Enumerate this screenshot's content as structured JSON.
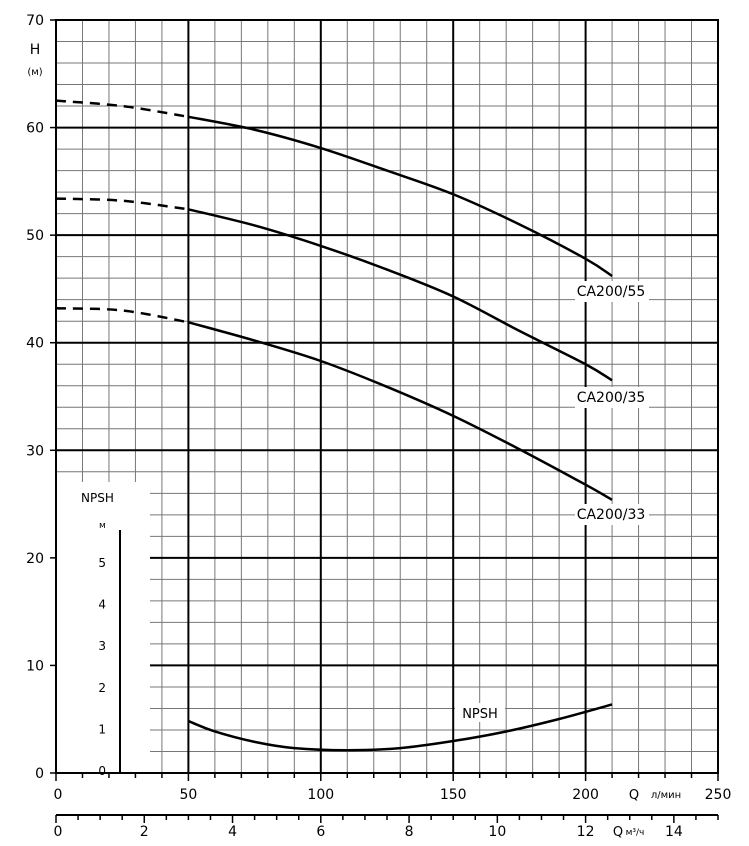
{
  "chart_data": {
    "type": "line",
    "title": "",
    "ylabel": "H",
    "yunit": "(м)",
    "xlabel": "Q",
    "xunit": "л/мин",
    "x2label": "Q",
    "x2unit": "м³/ч",
    "xlim": [
      0,
      250
    ],
    "ylim": [
      0,
      70
    ],
    "x2lim": [
      0,
      15
    ],
    "xticks": [
      "0",
      "50",
      "100",
      "150",
      "200",
      "250"
    ],
    "yticks": [
      "0",
      "10",
      "20",
      "30",
      "40",
      "50",
      "60",
      "70"
    ],
    "x2ticks": [
      "0",
      "2",
      "4",
      "6",
      "8",
      "10",
      "12",
      "14"
    ],
    "grid": true,
    "series": [
      {
        "name": "CA200/55",
        "dashed_to": 50,
        "points": [
          [
            0,
            62.5
          ],
          [
            25,
            62
          ],
          [
            50,
            61
          ],
          [
            75,
            59.8
          ],
          [
            100,
            58.1
          ],
          [
            125,
            56
          ],
          [
            150,
            53.8
          ],
          [
            175,
            51
          ],
          [
            200,
            47.8
          ],
          [
            210,
            46.2
          ]
        ]
      },
      {
        "name": "CA200/35",
        "dashed_to": 50,
        "points": [
          [
            0,
            53.4
          ],
          [
            25,
            53.2
          ],
          [
            50,
            52.4
          ],
          [
            75,
            50.9
          ],
          [
            100,
            49
          ],
          [
            125,
            46.8
          ],
          [
            150,
            44.3
          ],
          [
            175,
            41.1
          ],
          [
            200,
            38
          ],
          [
            210,
            36.5
          ]
        ]
      },
      {
        "name": "CA200/33",
        "dashed_to": 50,
        "points": [
          [
            0,
            43.2
          ],
          [
            25,
            43
          ],
          [
            50,
            41.9
          ],
          [
            75,
            40.2
          ],
          [
            100,
            38.3
          ],
          [
            125,
            35.9
          ],
          [
            150,
            33.2
          ],
          [
            175,
            30.1
          ],
          [
            200,
            26.8
          ],
          [
            210,
            25.4
          ]
        ]
      }
    ],
    "npsh": {
      "label": "NPSH",
      "axis_label": "NPSH",
      "unit": "м",
      "ticks": [
        "0",
        "1",
        "2",
        "3",
        "4",
        "5"
      ],
      "range": [
        0,
        5.6
      ],
      "points": [
        [
          50,
          1.2
        ],
        [
          60,
          0.95
        ],
        [
          75,
          0.7
        ],
        [
          90,
          0.55
        ],
        [
          110,
          0.5
        ],
        [
          130,
          0.55
        ],
        [
          150,
          0.72
        ],
        [
          170,
          0.95
        ],
        [
          190,
          1.25
        ],
        [
          210,
          1.6
        ]
      ]
    }
  }
}
